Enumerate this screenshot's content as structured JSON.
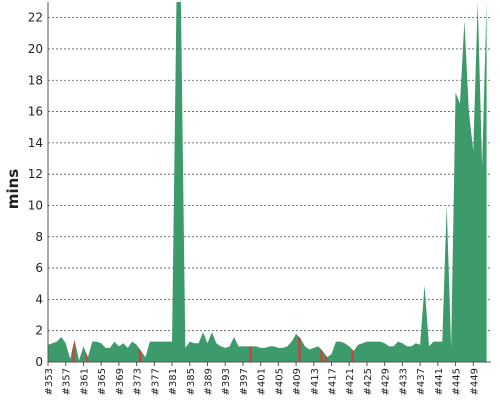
{
  "chart_data": {
    "type": "area",
    "y_label": "mins",
    "x": [
      353,
      354,
      355,
      356,
      357,
      358,
      359,
      360,
      361,
      362,
      363,
      364,
      365,
      366,
      367,
      368,
      369,
      370,
      371,
      372,
      373,
      374,
      375,
      376,
      377,
      378,
      379,
      380,
      381,
      382,
      383,
      384,
      385,
      386,
      387,
      388,
      389,
      390,
      391,
      392,
      393,
      394,
      395,
      396,
      397,
      398,
      399,
      400,
      401,
      402,
      403,
      404,
      405,
      406,
      407,
      408,
      409,
      410,
      411,
      412,
      413,
      414,
      415,
      416,
      417,
      418,
      419,
      420,
      421,
      422,
      423,
      424,
      425,
      426,
      427,
      428,
      429,
      430,
      431,
      432,
      433,
      434,
      435,
      436,
      437,
      438,
      439,
      440,
      441,
      442,
      443,
      444,
      445,
      446,
      447,
      448,
      449,
      450,
      451,
      452
    ],
    "values": [
      1.1,
      1.2,
      1.3,
      1.6,
      1.2,
      0.2,
      1.4,
      0.1,
      1.0,
      0.3,
      1.3,
      1.3,
      1.2,
      0.9,
      0.9,
      1.3,
      1.0,
      1.2,
      0.9,
      1.3,
      1.1,
      0.7,
      0.3,
      1.3,
      1.3,
      1.3,
      1.3,
      1.3,
      1.3,
      23,
      23,
      0.9,
      1.3,
      1.2,
      1.2,
      1.9,
      1.2,
      1.9,
      1.2,
      1.0,
      0.9,
      1.0,
      1.6,
      1.0,
      1.0,
      1.0,
      1.0,
      1.0,
      0.9,
      0.9,
      1.0,
      1.0,
      0.9,
      0.9,
      1.0,
      1.3,
      1.8,
      1.5,
      1.0,
      0.8,
      0.9,
      1.0,
      0.7,
      0.3,
      0.5,
      1.3,
      1.3,
      1.2,
      1.0,
      0.7,
      1.1,
      1.2,
      1.3,
      1.3,
      1.3,
      1.3,
      1.2,
      1.0,
      1.0,
      1.3,
      1.2,
      1.0,
      1.0,
      1.2,
      1.1,
      4.9,
      1.0,
      1.3,
      1.3,
      1.3,
      10,
      0.9,
      17.2,
      16.5,
      21.8,
      16.0,
      13.5,
      23,
      12.5,
      23
    ],
    "failed": [
      359,
      362,
      374,
      399,
      410,
      415,
      416,
      422
    ],
    "color": "#3d9a6a",
    "failed_color": "#d63a3a",
    "xlim": [
      353,
      453
    ],
    "ylim": [
      0,
      23
    ],
    "yticks": [
      0,
      2,
      4,
      6,
      8,
      10,
      12,
      14,
      16,
      18,
      20,
      22
    ],
    "xticks": [
      {
        "value": 353,
        "label": "#353"
      },
      {
        "value": 357,
        "label": "#357"
      },
      {
        "value": 361,
        "label": "#361"
      },
      {
        "value": 365,
        "label": "#365"
      },
      {
        "value": 369,
        "label": "#369"
      },
      {
        "value": 373,
        "label": "#373"
      },
      {
        "value": 377,
        "label": "#377"
      },
      {
        "value": 381,
        "label": "#381"
      },
      {
        "value": 385,
        "label": "#385"
      },
      {
        "value": 389,
        "label": "#389"
      },
      {
        "value": 393,
        "label": "#393"
      },
      {
        "value": 397,
        "label": "#397"
      },
      {
        "value": 401,
        "label": "#401"
      },
      {
        "value": 405,
        "label": "#405"
      },
      {
        "value": 409,
        "label": "#409"
      },
      {
        "value": 413,
        "label": "#413"
      },
      {
        "value": 417,
        "label": "#417"
      },
      {
        "value": 421,
        "label": "#421"
      },
      {
        "value": 425,
        "label": "#425"
      },
      {
        "value": 429,
        "label": "#429"
      },
      {
        "value": 433,
        "label": "#433"
      },
      {
        "value": 437,
        "label": "#437"
      },
      {
        "value": 441,
        "label": "#441"
      },
      {
        "value": 445,
        "label": "#445"
      },
      {
        "value": 449,
        "label": "#449"
      }
    ],
    "grid": true
  }
}
